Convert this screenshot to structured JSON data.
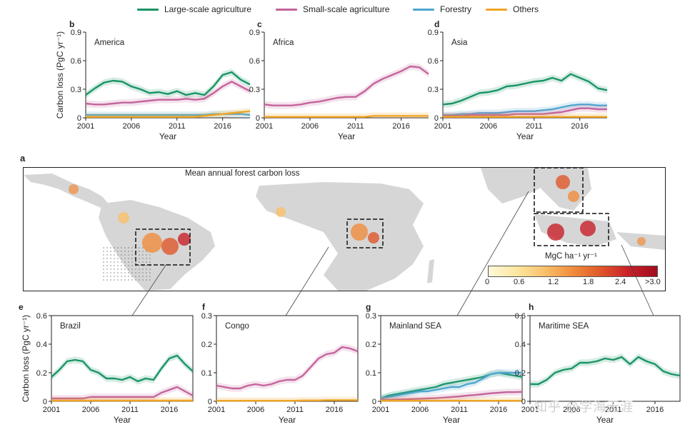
{
  "legend": [
    {
      "label": "Large-scale agriculture",
      "color": "#1a9466"
    },
    {
      "label": "Small-scale agriculture",
      "color": "#c4649c"
    },
    {
      "label": "Forestry",
      "color": "#4fa6cf"
    },
    {
      "label": "Others",
      "color": "#f0a524"
    }
  ],
  "map": {
    "letter": "a",
    "title": "Mean annual forest carbon loss",
    "colorbar_label": "MgC ha⁻¹ yr⁻¹",
    "colorbar_ticks": [
      "0",
      "0.6",
      "1.2",
      "1.8",
      "2.4",
      ">3.0"
    ]
  },
  "watermark": "知乎 @学海无涯",
  "chart_data": [
    {
      "panel": "b",
      "type": "line",
      "region": "America",
      "ylabel": "Carbon loss (PgC yr⁻¹)",
      "xlabel": "Year",
      "xlim": [
        2001,
        2019
      ],
      "ylim": [
        0,
        0.9
      ],
      "yticks": [
        "0",
        "0.3",
        "0.6",
        "0.9"
      ],
      "xticks": [
        "2001",
        "2006",
        "2011",
        "2016"
      ],
      "x": [
        2001,
        2002,
        2003,
        2004,
        2005,
        2006,
        2007,
        2008,
        2009,
        2010,
        2011,
        2012,
        2013,
        2014,
        2015,
        2016,
        2017,
        2018,
        2019
      ],
      "series": [
        {
          "name": "Large-scale agriculture",
          "values": [
            0.24,
            0.31,
            0.37,
            0.39,
            0.38,
            0.33,
            0.3,
            0.26,
            0.27,
            0.25,
            0.28,
            0.24,
            0.26,
            0.24,
            0.33,
            0.45,
            0.48,
            0.4,
            0.35
          ]
        },
        {
          "name": "Small-scale agriculture",
          "values": [
            0.15,
            0.14,
            0.14,
            0.15,
            0.16,
            0.16,
            0.17,
            0.18,
            0.19,
            0.19,
            0.19,
            0.2,
            0.19,
            0.2,
            0.26,
            0.33,
            0.38,
            0.33,
            0.28
          ]
        },
        {
          "name": "Forestry",
          "values": [
            0.03,
            0.03,
            0.03,
            0.03,
            0.03,
            0.03,
            0.03,
            0.03,
            0.03,
            0.03,
            0.03,
            0.03,
            0.03,
            0.03,
            0.04,
            0.04,
            0.04,
            0.04,
            0.03
          ]
        },
        {
          "name": "Others",
          "values": [
            0.01,
            0.01,
            0.01,
            0.01,
            0.01,
            0.01,
            0.01,
            0.01,
            0.01,
            0.01,
            0.01,
            0.01,
            0.01,
            0.02,
            0.03,
            0.04,
            0.05,
            0.06,
            0.07
          ]
        }
      ]
    },
    {
      "panel": "c",
      "type": "line",
      "region": "Africa",
      "ylabel": "",
      "xlabel": "Year",
      "xlim": [
        2001,
        2019
      ],
      "ylim": [
        0,
        0.9
      ],
      "yticks": [
        "0",
        "0.3",
        "0.6",
        "0.9"
      ],
      "xticks": [
        "2001",
        "2006",
        "2011",
        "2016"
      ],
      "x": [
        2001,
        2002,
        2003,
        2004,
        2005,
        2006,
        2007,
        2008,
        2009,
        2010,
        2011,
        2012,
        2013,
        2014,
        2015,
        2016,
        2017,
        2018,
        2019
      ],
      "series": [
        {
          "name": "Small-scale agriculture",
          "values": [
            0.14,
            0.13,
            0.13,
            0.13,
            0.14,
            0.16,
            0.17,
            0.19,
            0.21,
            0.22,
            0.22,
            0.28,
            0.36,
            0.41,
            0.45,
            0.49,
            0.54,
            0.53,
            0.46
          ]
        },
        {
          "name": "Others",
          "values": [
            0.01,
            0.01,
            0.01,
            0.01,
            0.01,
            0.01,
            0.01,
            0.01,
            0.01,
            0.01,
            0.01,
            0.01,
            0.02,
            0.02,
            0.02,
            0.02,
            0.02,
            0.02,
            0.02
          ]
        }
      ]
    },
    {
      "panel": "d",
      "type": "line",
      "region": "Asia",
      "ylabel": "",
      "xlabel": "Year",
      "xlim": [
        2001,
        2019
      ],
      "ylim": [
        0,
        0.9
      ],
      "yticks": [
        "0",
        "0.3",
        "0.6",
        "0.9"
      ],
      "xticks": [
        "2001",
        "2006",
        "2011",
        "2016"
      ],
      "x": [
        2001,
        2002,
        2003,
        2004,
        2005,
        2006,
        2007,
        2008,
        2009,
        2010,
        2011,
        2012,
        2013,
        2014,
        2015,
        2016,
        2017,
        2018,
        2019
      ],
      "series": [
        {
          "name": "Large-scale agriculture",
          "values": [
            0.14,
            0.15,
            0.18,
            0.22,
            0.26,
            0.27,
            0.29,
            0.33,
            0.34,
            0.36,
            0.38,
            0.39,
            0.42,
            0.39,
            0.46,
            0.42,
            0.38,
            0.31,
            0.29
          ]
        },
        {
          "name": "Forestry",
          "values": [
            0.03,
            0.03,
            0.04,
            0.04,
            0.05,
            0.05,
            0.05,
            0.06,
            0.07,
            0.07,
            0.07,
            0.08,
            0.09,
            0.11,
            0.13,
            0.14,
            0.14,
            0.13,
            0.13
          ]
        },
        {
          "name": "Small-scale agriculture",
          "values": [
            0.02,
            0.02,
            0.02,
            0.03,
            0.03,
            0.03,
            0.03,
            0.03,
            0.04,
            0.04,
            0.04,
            0.04,
            0.05,
            0.06,
            0.08,
            0.1,
            0.1,
            0.09,
            0.09
          ]
        },
        {
          "name": "Others",
          "values": [
            0.01,
            0.01,
            0.01,
            0.01,
            0.01,
            0.01,
            0.01,
            0.01,
            0.01,
            0.01,
            0.01,
            0.01,
            0.01,
            0.01,
            0.01,
            0.01,
            0.01,
            0.01,
            0.01
          ]
        }
      ]
    },
    {
      "panel": "e",
      "type": "line",
      "region": "Brazil",
      "ylabel": "Carbon loss (PgC yr⁻¹)",
      "xlabel": "Year",
      "xlim": [
        2001,
        2019
      ],
      "ylim": [
        0,
        0.6
      ],
      "yticks": [
        "0",
        "0.2",
        "0.4",
        "0.6"
      ],
      "xticks": [
        "2001",
        "2006",
        "2011",
        "2016"
      ],
      "x": [
        2001,
        2002,
        2003,
        2004,
        2005,
        2006,
        2007,
        2008,
        2009,
        2010,
        2011,
        2012,
        2013,
        2014,
        2015,
        2016,
        2017,
        2018,
        2019
      ],
      "series": [
        {
          "name": "Large-scale agriculture",
          "values": [
            0.17,
            0.22,
            0.28,
            0.29,
            0.28,
            0.22,
            0.2,
            0.16,
            0.16,
            0.15,
            0.17,
            0.14,
            0.16,
            0.15,
            0.23,
            0.3,
            0.32,
            0.26,
            0.21
          ]
        },
        {
          "name": "Small-scale agriculture",
          "values": [
            0.02,
            0.02,
            0.02,
            0.02,
            0.02,
            0.03,
            0.03,
            0.03,
            0.03,
            0.03,
            0.03,
            0.03,
            0.03,
            0.03,
            0.06,
            0.08,
            0.1,
            0.07,
            0.04
          ]
        },
        {
          "name": "Others",
          "values": [
            0.005,
            0.005,
            0.005,
            0.005,
            0.005,
            0.005,
            0.005,
            0.005,
            0.005,
            0.005,
            0.005,
            0.005,
            0.005,
            0.005,
            0.005,
            0.005,
            0.005,
            0.005,
            0.005
          ]
        }
      ]
    },
    {
      "panel": "f",
      "type": "line",
      "region": "Congo",
      "ylabel": "",
      "xlabel": "Year",
      "xlim": [
        2001,
        2019
      ],
      "ylim": [
        0,
        0.3
      ],
      "yticks": [
        "0",
        "0.1",
        "0.2",
        "0.3"
      ],
      "xticks": [
        "2001",
        "2006",
        "2011",
        "2016"
      ],
      "x": [
        2001,
        2002,
        2003,
        2004,
        2005,
        2006,
        2007,
        2008,
        2009,
        2010,
        2011,
        2012,
        2013,
        2014,
        2015,
        2016,
        2017,
        2018,
        2019
      ],
      "series": [
        {
          "name": "Small-scale agriculture",
          "values": [
            0.055,
            0.05,
            0.045,
            0.045,
            0.055,
            0.06,
            0.055,
            0.06,
            0.07,
            0.075,
            0.075,
            0.09,
            0.12,
            0.15,
            0.165,
            0.17,
            0.19,
            0.185,
            0.175
          ]
        },
        {
          "name": "Others",
          "values": [
            0.002,
            0.002,
            0.002,
            0.002,
            0.002,
            0.002,
            0.002,
            0.002,
            0.002,
            0.002,
            0.002,
            0.003,
            0.003,
            0.003,
            0.004,
            0.004,
            0.004,
            0.004,
            0.004
          ]
        }
      ]
    },
    {
      "panel": "g",
      "type": "line",
      "region": "Mainland SEA",
      "ylabel": "",
      "xlabel": "Year",
      "xlim": [
        2001,
        2019
      ],
      "ylim": [
        0,
        0.3
      ],
      "yticks": [
        "0",
        "0.1",
        "0.2",
        "0.3"
      ],
      "xticks": [
        "2001",
        "2006",
        "2011",
        "2016"
      ],
      "x": [
        2001,
        2002,
        2003,
        2004,
        2005,
        2006,
        2007,
        2008,
        2009,
        2010,
        2011,
        2012,
        2013,
        2014,
        2015,
        2016,
        2017,
        2018,
        2019
      ],
      "series": [
        {
          "name": "Large-scale agriculture",
          "values": [
            0.01,
            0.02,
            0.025,
            0.03,
            0.035,
            0.04,
            0.045,
            0.05,
            0.06,
            0.065,
            0.07,
            0.075,
            0.08,
            0.085,
            0.095,
            0.1,
            0.095,
            0.09,
            0.085
          ]
        },
        {
          "name": "Forestry",
          "values": [
            0.01,
            0.015,
            0.02,
            0.025,
            0.03,
            0.035,
            0.035,
            0.04,
            0.045,
            0.05,
            0.05,
            0.06,
            0.065,
            0.08,
            0.095,
            0.1,
            0.1,
            0.1,
            0.1
          ]
        },
        {
          "name": "Small-scale agriculture",
          "values": [
            0.005,
            0.005,
            0.006,
            0.007,
            0.008,
            0.009,
            0.01,
            0.011,
            0.013,
            0.015,
            0.017,
            0.02,
            0.022,
            0.025,
            0.028,
            0.03,
            0.032,
            0.032,
            0.033
          ]
        },
        {
          "name": "Others",
          "values": [
            0.002,
            0.002,
            0.002,
            0.002,
            0.002,
            0.002,
            0.002,
            0.002,
            0.002,
            0.002,
            0.002,
            0.002,
            0.002,
            0.002,
            0.002,
            0.002,
            0.002,
            0.002,
            0.002
          ]
        }
      ]
    },
    {
      "panel": "h",
      "type": "line",
      "region": "Maritime SEA",
      "ylabel": "",
      "xlabel": "Year",
      "xlim": [
        2001,
        2019
      ],
      "ylim": [
        0,
        0.6
      ],
      "yticks": [
        "0",
        "0.2",
        "0.4",
        "0.6"
      ],
      "xticks": [
        "2001",
        "2006",
        "2011",
        "2016"
      ],
      "x": [
        2001,
        2002,
        2003,
        2004,
        2005,
        2006,
        2007,
        2008,
        2009,
        2010,
        2011,
        2012,
        2013,
        2014,
        2015,
        2016,
        2017,
        2018,
        2019
      ],
      "series": [
        {
          "name": "Large-scale agriculture",
          "values": [
            0.12,
            0.12,
            0.15,
            0.2,
            0.22,
            0.23,
            0.27,
            0.27,
            0.28,
            0.3,
            0.29,
            0.31,
            0.26,
            0.31,
            0.28,
            0.26,
            0.21,
            0.19,
            0.18
          ]
        }
      ]
    }
  ]
}
